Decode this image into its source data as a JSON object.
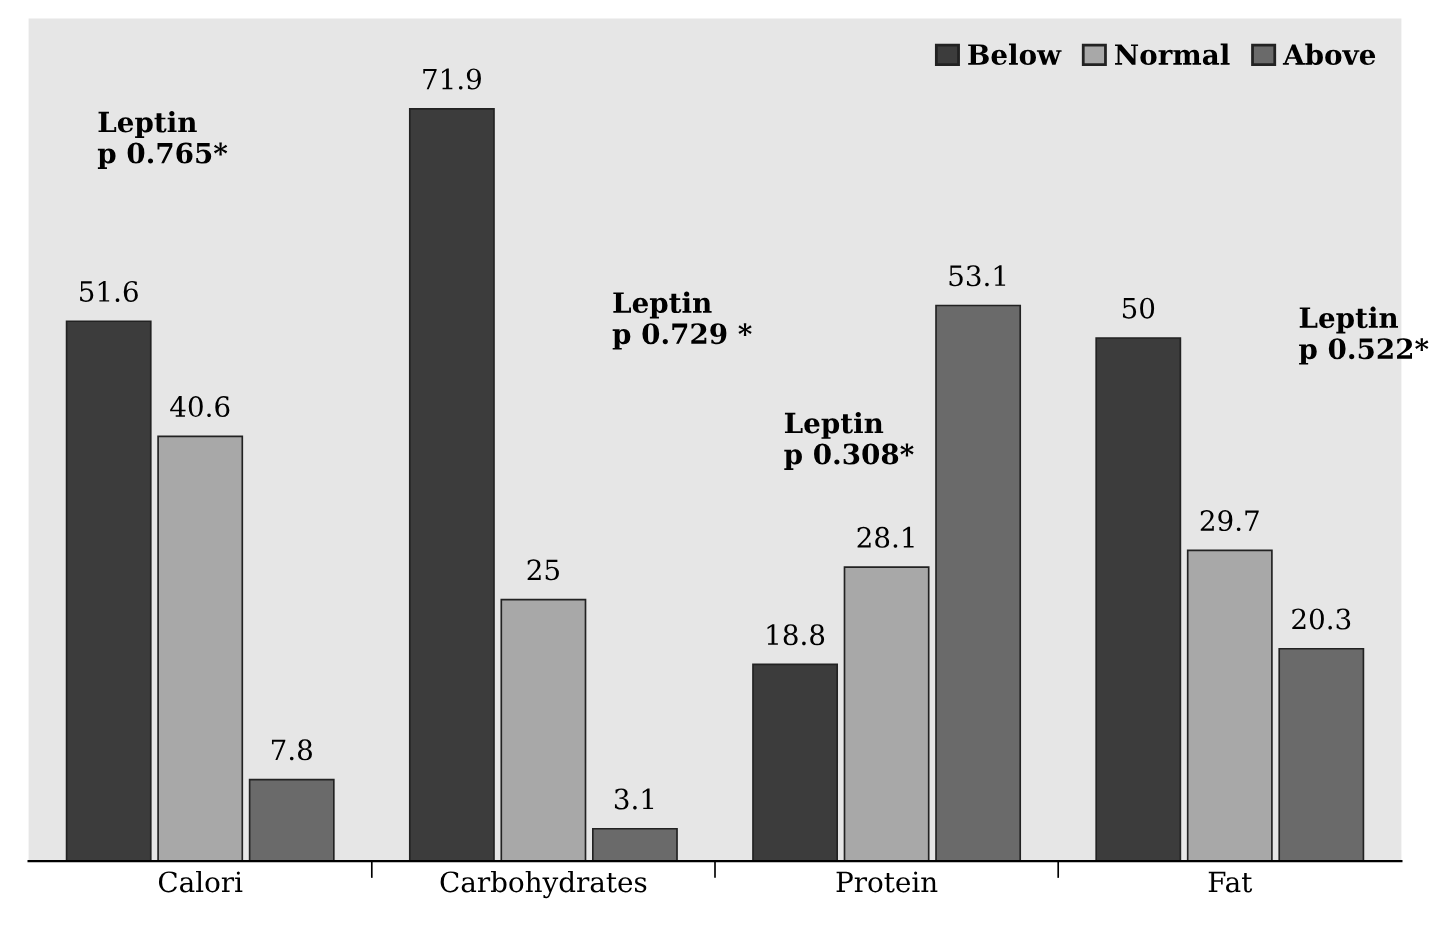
{
  "chart_data": {
    "type": "bar",
    "categories": [
      "Calori",
      "Carbohydrates",
      "Protein",
      "Fat"
    ],
    "series": [
      {
        "name": "Below",
        "color": "#3c3c3c",
        "values": [
          51.6,
          71.9,
          18.8,
          50
        ]
      },
      {
        "name": "Normal",
        "color": "#a8a8a8",
        "values": [
          40.6,
          25,
          28.1,
          29.7
        ]
      },
      {
        "name": "Above",
        "color": "#6a6a6a",
        "values": [
          7.8,
          3.1,
          53.1,
          20.3
        ]
      }
    ],
    "data_labels": true,
    "legend": "top right",
    "grid": false,
    "annotations": [
      "Leptin\np 0.765*",
      "Leptin\np 0.729 *",
      "Leptin\np 0.308*",
      "Leptin\np 0.522*"
    ]
  }
}
